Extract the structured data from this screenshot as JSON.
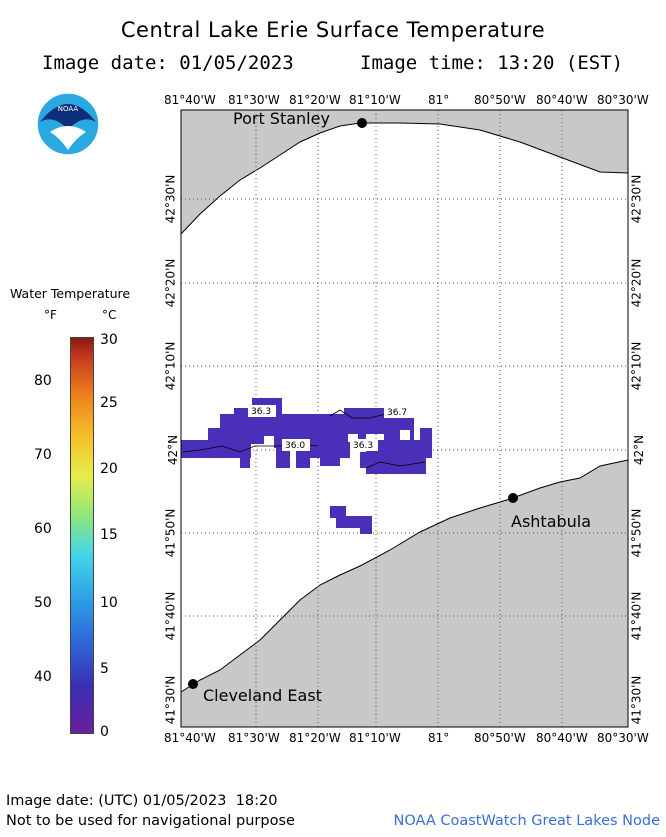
{
  "header": {
    "title": "Central Lake Erie Surface Temperature",
    "image_date": "Image date: 01/05/2023",
    "image_time": "Image time: 13:20 (EST)"
  },
  "legend": {
    "title": "Water Temperature",
    "unit_f": "°F",
    "unit_c": "°C",
    "fahrenheit_ticks": [
      "80",
      "70",
      "60",
      "50",
      "40"
    ],
    "celsius_ticks": [
      "30",
      "25",
      "20",
      "15",
      "10",
      "5",
      "0"
    ],
    "celsius_range": [
      0,
      30
    ]
  },
  "map": {
    "longitude_labels": [
      "81°40'W",
      "81°30'W",
      "81°20'W",
      "81°10'W",
      "81°",
      "80°50'W",
      "80°40'W",
      "80°30'W"
    ],
    "latitude_labels": [
      "42°30'N",
      "42°20'N",
      "42°10'N",
      "42°N",
      "41°50'N",
      "41°40'N",
      "41°30'N"
    ],
    "cities": [
      {
        "name": "Port Stanley"
      },
      {
        "name": "Ashtabula"
      },
      {
        "name": "Cleveland East"
      }
    ],
    "temperature_labels": [
      "36.3",
      "36.7",
      "36.0",
      "36.3"
    ],
    "colors": {
      "land": "#c8c8c8",
      "water": "#ffffff",
      "cold_water_pixel": "#4a30b8",
      "grid": "#666666"
    }
  },
  "footer": {
    "utc_date": "Image date: (UTC) 01/05/2023  18:20",
    "disclaimer": "Not to be used for navigational purpose",
    "credit": "NOAA CoastWatch Great Lakes Node"
  }
}
